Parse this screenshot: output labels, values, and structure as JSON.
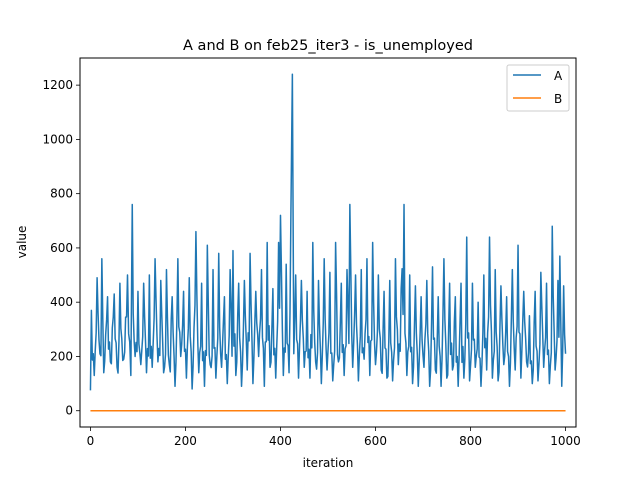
{
  "chart_data": {
    "type": "line",
    "title": "A and B on feb25_iter3 - is_unemployed",
    "xlabel": "iteration",
    "ylabel": "value",
    "xlim": [
      -22,
      1022
    ],
    "ylim": [
      -60,
      1300
    ],
    "xticks": [
      0,
      200,
      400,
      600,
      800,
      1000
    ],
    "yticks": [
      0,
      200,
      400,
      600,
      800,
      1000,
      1200
    ],
    "legend_position": "top-right",
    "grid": false,
    "series": [
      {
        "name": "A",
        "color": "#1f77b4",
        "peaks": [
          [
            0,
            75
          ],
          [
            2,
            370
          ],
          [
            8,
            130
          ],
          [
            14,
            490
          ],
          [
            20,
            210
          ],
          [
            24,
            560
          ],
          [
            28,
            140
          ],
          [
            36,
            420
          ],
          [
            42,
            180
          ],
          [
            50,
            430
          ],
          [
            56,
            160
          ],
          [
            62,
            470
          ],
          [
            70,
            190
          ],
          [
            78,
            500
          ],
          [
            85,
            130
          ],
          [
            88,
            760
          ],
          [
            94,
            200
          ],
          [
            100,
            440
          ],
          [
            106,
            170
          ],
          [
            112,
            470
          ],
          [
            118,
            140
          ],
          [
            124,
            500
          ],
          [
            130,
            160
          ],
          [
            136,
            560
          ],
          [
            142,
            180
          ],
          [
            148,
            480
          ],
          [
            154,
            140
          ],
          [
            160,
            520
          ],
          [
            166,
            170
          ],
          [
            172,
            420
          ],
          [
            178,
            90
          ],
          [
            184,
            560
          ],
          [
            190,
            200
          ],
          [
            196,
            440
          ],
          [
            202,
            120
          ],
          [
            208,
            490
          ],
          [
            214,
            80
          ],
          [
            222,
            660
          ],
          [
            228,
            140
          ],
          [
            234,
            470
          ],
          [
            240,
            90
          ],
          [
            246,
            610
          ],
          [
            252,
            170
          ],
          [
            258,
            520
          ],
          [
            264,
            120
          ],
          [
            270,
            580
          ],
          [
            276,
            160
          ],
          [
            282,
            420
          ],
          [
            288,
            100
          ],
          [
            294,
            520
          ],
          [
            300,
            590
          ],
          [
            306,
            130
          ],
          [
            312,
            470
          ],
          [
            318,
            90
          ],
          [
            324,
            480
          ],
          [
            330,
            150
          ],
          [
            336,
            580
          ],
          [
            342,
            100
          ],
          [
            348,
            440
          ],
          [
            354,
            200
          ],
          [
            360,
            520
          ],
          [
            366,
            90
          ],
          [
            372,
            620
          ],
          [
            378,
            160
          ],
          [
            384,
            450
          ],
          [
            390,
            120
          ],
          [
            396,
            620
          ],
          [
            400,
            720
          ],
          [
            406,
            130
          ],
          [
            412,
            540
          ],
          [
            418,
            140
          ],
          [
            422,
            740
          ],
          [
            425,
            1240
          ],
          [
            428,
            210
          ],
          [
            432,
            500
          ],
          [
            438,
            120
          ],
          [
            444,
            480
          ],
          [
            450,
            160
          ],
          [
            456,
            440
          ],
          [
            462,
            120
          ],
          [
            468,
            620
          ],
          [
            474,
            180
          ],
          [
            480,
            480
          ],
          [
            486,
            100
          ],
          [
            492,
            560
          ],
          [
            498,
            150
          ],
          [
            504,
            510
          ],
          [
            510,
            110
          ],
          [
            516,
            620
          ],
          [
            522,
            180
          ],
          [
            528,
            470
          ],
          [
            534,
            130
          ],
          [
            540,
            520
          ],
          [
            546,
            760
          ],
          [
            552,
            160
          ],
          [
            558,
            500
          ],
          [
            564,
            110
          ],
          [
            570,
            520
          ],
          [
            576,
            190
          ],
          [
            582,
            560
          ],
          [
            588,
            130
          ],
          [
            594,
            620
          ],
          [
            600,
            170
          ],
          [
            606,
            500
          ],
          [
            612,
            150
          ],
          [
            618,
            440
          ],
          [
            624,
            120
          ],
          [
            630,
            480
          ],
          [
            636,
            110
          ],
          [
            642,
            560
          ],
          [
            648,
            170
          ],
          [
            654,
            450
          ],
          [
            660,
            760
          ],
          [
            666,
            130
          ],
          [
            672,
            500
          ],
          [
            678,
            100
          ],
          [
            684,
            460
          ],
          [
            690,
            90
          ],
          [
            696,
            420
          ],
          [
            702,
            160
          ],
          [
            708,
            480
          ],
          [
            714,
            90
          ],
          [
            720,
            530
          ],
          [
            726,
            150
          ],
          [
            732,
            420
          ],
          [
            738,
            90
          ],
          [
            744,
            560
          ],
          [
            750,
            120
          ],
          [
            756,
            470
          ],
          [
            762,
            150
          ],
          [
            768,
            420
          ],
          [
            774,
            90
          ],
          [
            780,
            470
          ],
          [
            786,
            120
          ],
          [
            792,
            640
          ],
          [
            798,
            110
          ],
          [
            804,
            470
          ],
          [
            810,
            160
          ],
          [
            816,
            400
          ],
          [
            822,
            90
          ],
          [
            828,
            500
          ],
          [
            834,
            150
          ],
          [
            840,
            640
          ],
          [
            846,
            120
          ],
          [
            852,
            520
          ],
          [
            858,
            110
          ],
          [
            864,
            460
          ],
          [
            870,
            170
          ],
          [
            876,
            420
          ],
          [
            882,
            90
          ],
          [
            888,
            520
          ],
          [
            894,
            150
          ],
          [
            900,
            610
          ],
          [
            906,
            120
          ],
          [
            912,
            440
          ],
          [
            918,
            180
          ],
          [
            924,
            350
          ],
          [
            930,
            100
          ],
          [
            936,
            440
          ],
          [
            942,
            110
          ],
          [
            948,
            510
          ],
          [
            954,
            160
          ],
          [
            960,
            470
          ],
          [
            966,
            100
          ],
          [
            972,
            680
          ],
          [
            978,
            150
          ],
          [
            984,
            480
          ],
          [
            988,
            570
          ],
          [
            992,
            90
          ],
          [
            996,
            460
          ],
          [
            1000,
            210
          ]
        ]
      },
      {
        "name": "B",
        "color": "#ff7f0e",
        "constant": 0
      }
    ]
  }
}
